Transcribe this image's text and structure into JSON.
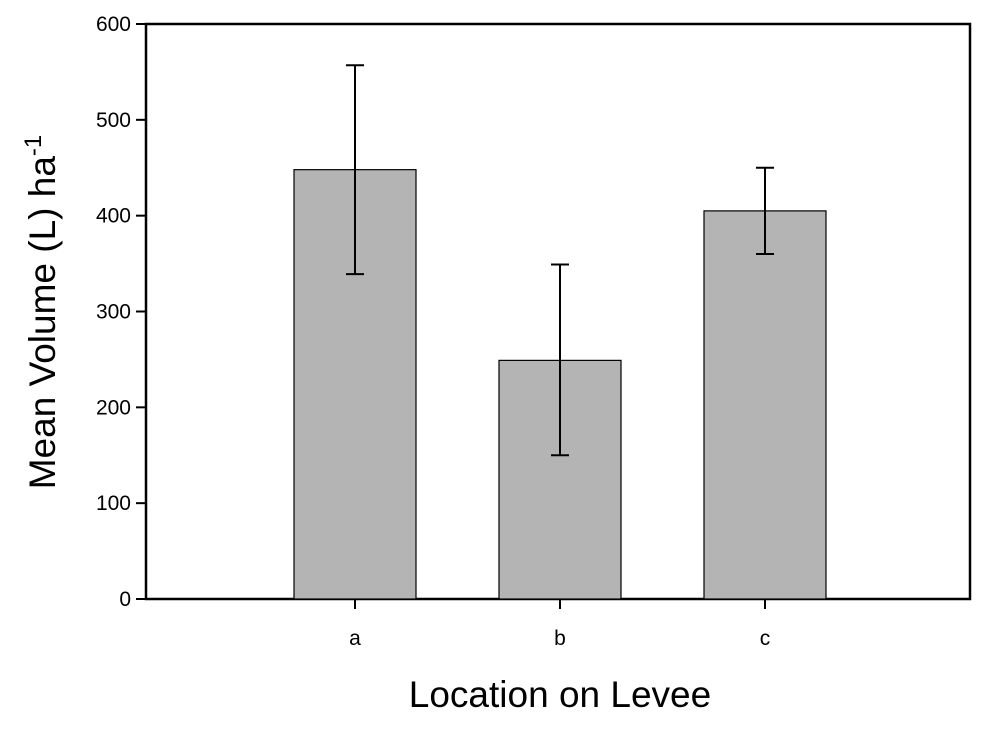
{
  "chart_data": {
    "type": "bar",
    "title": "",
    "xlabel": "Location on Levee",
    "ylabel": {
      "main": "Mean Volume (L) ha",
      "superscript": "-1"
    },
    "categories": [
      "a",
      "b",
      "c"
    ],
    "values": [
      448,
      249,
      405
    ],
    "error_bars": {
      "upper": [
        557,
        349,
        450
      ],
      "lower": [
        339,
        150,
        360
      ]
    },
    "ylim": [
      0,
      600
    ],
    "yticks": [
      0,
      100,
      200,
      300,
      400,
      500,
      600
    ],
    "ytick_labels": [
      "0",
      "100",
      "200",
      "300",
      "400",
      "500",
      "600"
    ],
    "grid": false,
    "legend": "none",
    "colors": {
      "bar_fill": "#b4b4b4",
      "bar_stroke": "#000000",
      "axis": "#000000"
    }
  }
}
